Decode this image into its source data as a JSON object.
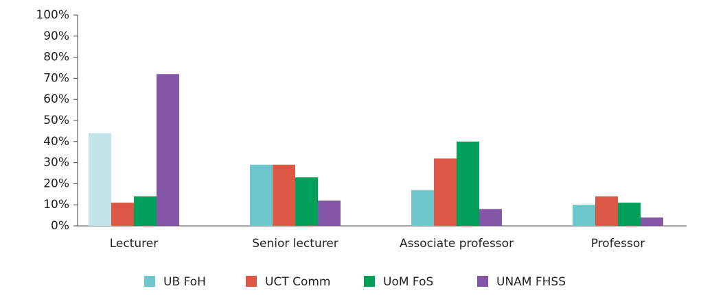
{
  "chart_data": {
    "type": "bar",
    "categories": [
      "Lecturer",
      "Senior lecturer",
      "Associate professor",
      "Professor"
    ],
    "series": [
      {
        "name": "UB FoH",
        "color": "#6cc8cc",
        "colors": [
          "#c0e4e8",
          "#6cc8cc",
          "#6cc8cc",
          "#6cc8cc"
        ],
        "values": [
          44,
          29,
          17,
          10
        ]
      },
      {
        "name": "UCT Comm",
        "color": "#dc5844",
        "values": [
          11,
          29,
          32,
          14
        ]
      },
      {
        "name": "UoM FoS",
        "color": "#00a05a",
        "values": [
          14,
          23,
          40,
          11
        ]
      },
      {
        "name": "UNAM FHSS",
        "color": "#8456a6",
        "values": [
          72,
          12,
          8,
          4
        ]
      }
    ],
    "ylim": [
      0,
      100
    ],
    "yticks": [
      {
        "value": 0,
        "label": "0%"
      },
      {
        "value": 10,
        "label": "10%"
      },
      {
        "value": 20,
        "label": "20%"
      },
      {
        "value": 30,
        "label": "30%"
      },
      {
        "value": 40,
        "label": "40%"
      },
      {
        "value": 50,
        "label": "50%"
      },
      {
        "value": 60,
        "label": "60%"
      },
      {
        "value": 70,
        "label": "70%"
      },
      {
        "value": 80,
        "label": "80%"
      },
      {
        "value": 90,
        "label": "90%"
      },
      {
        "value": 100,
        "label": "100%"
      }
    ],
    "grid": false,
    "legend": "bottom"
  }
}
